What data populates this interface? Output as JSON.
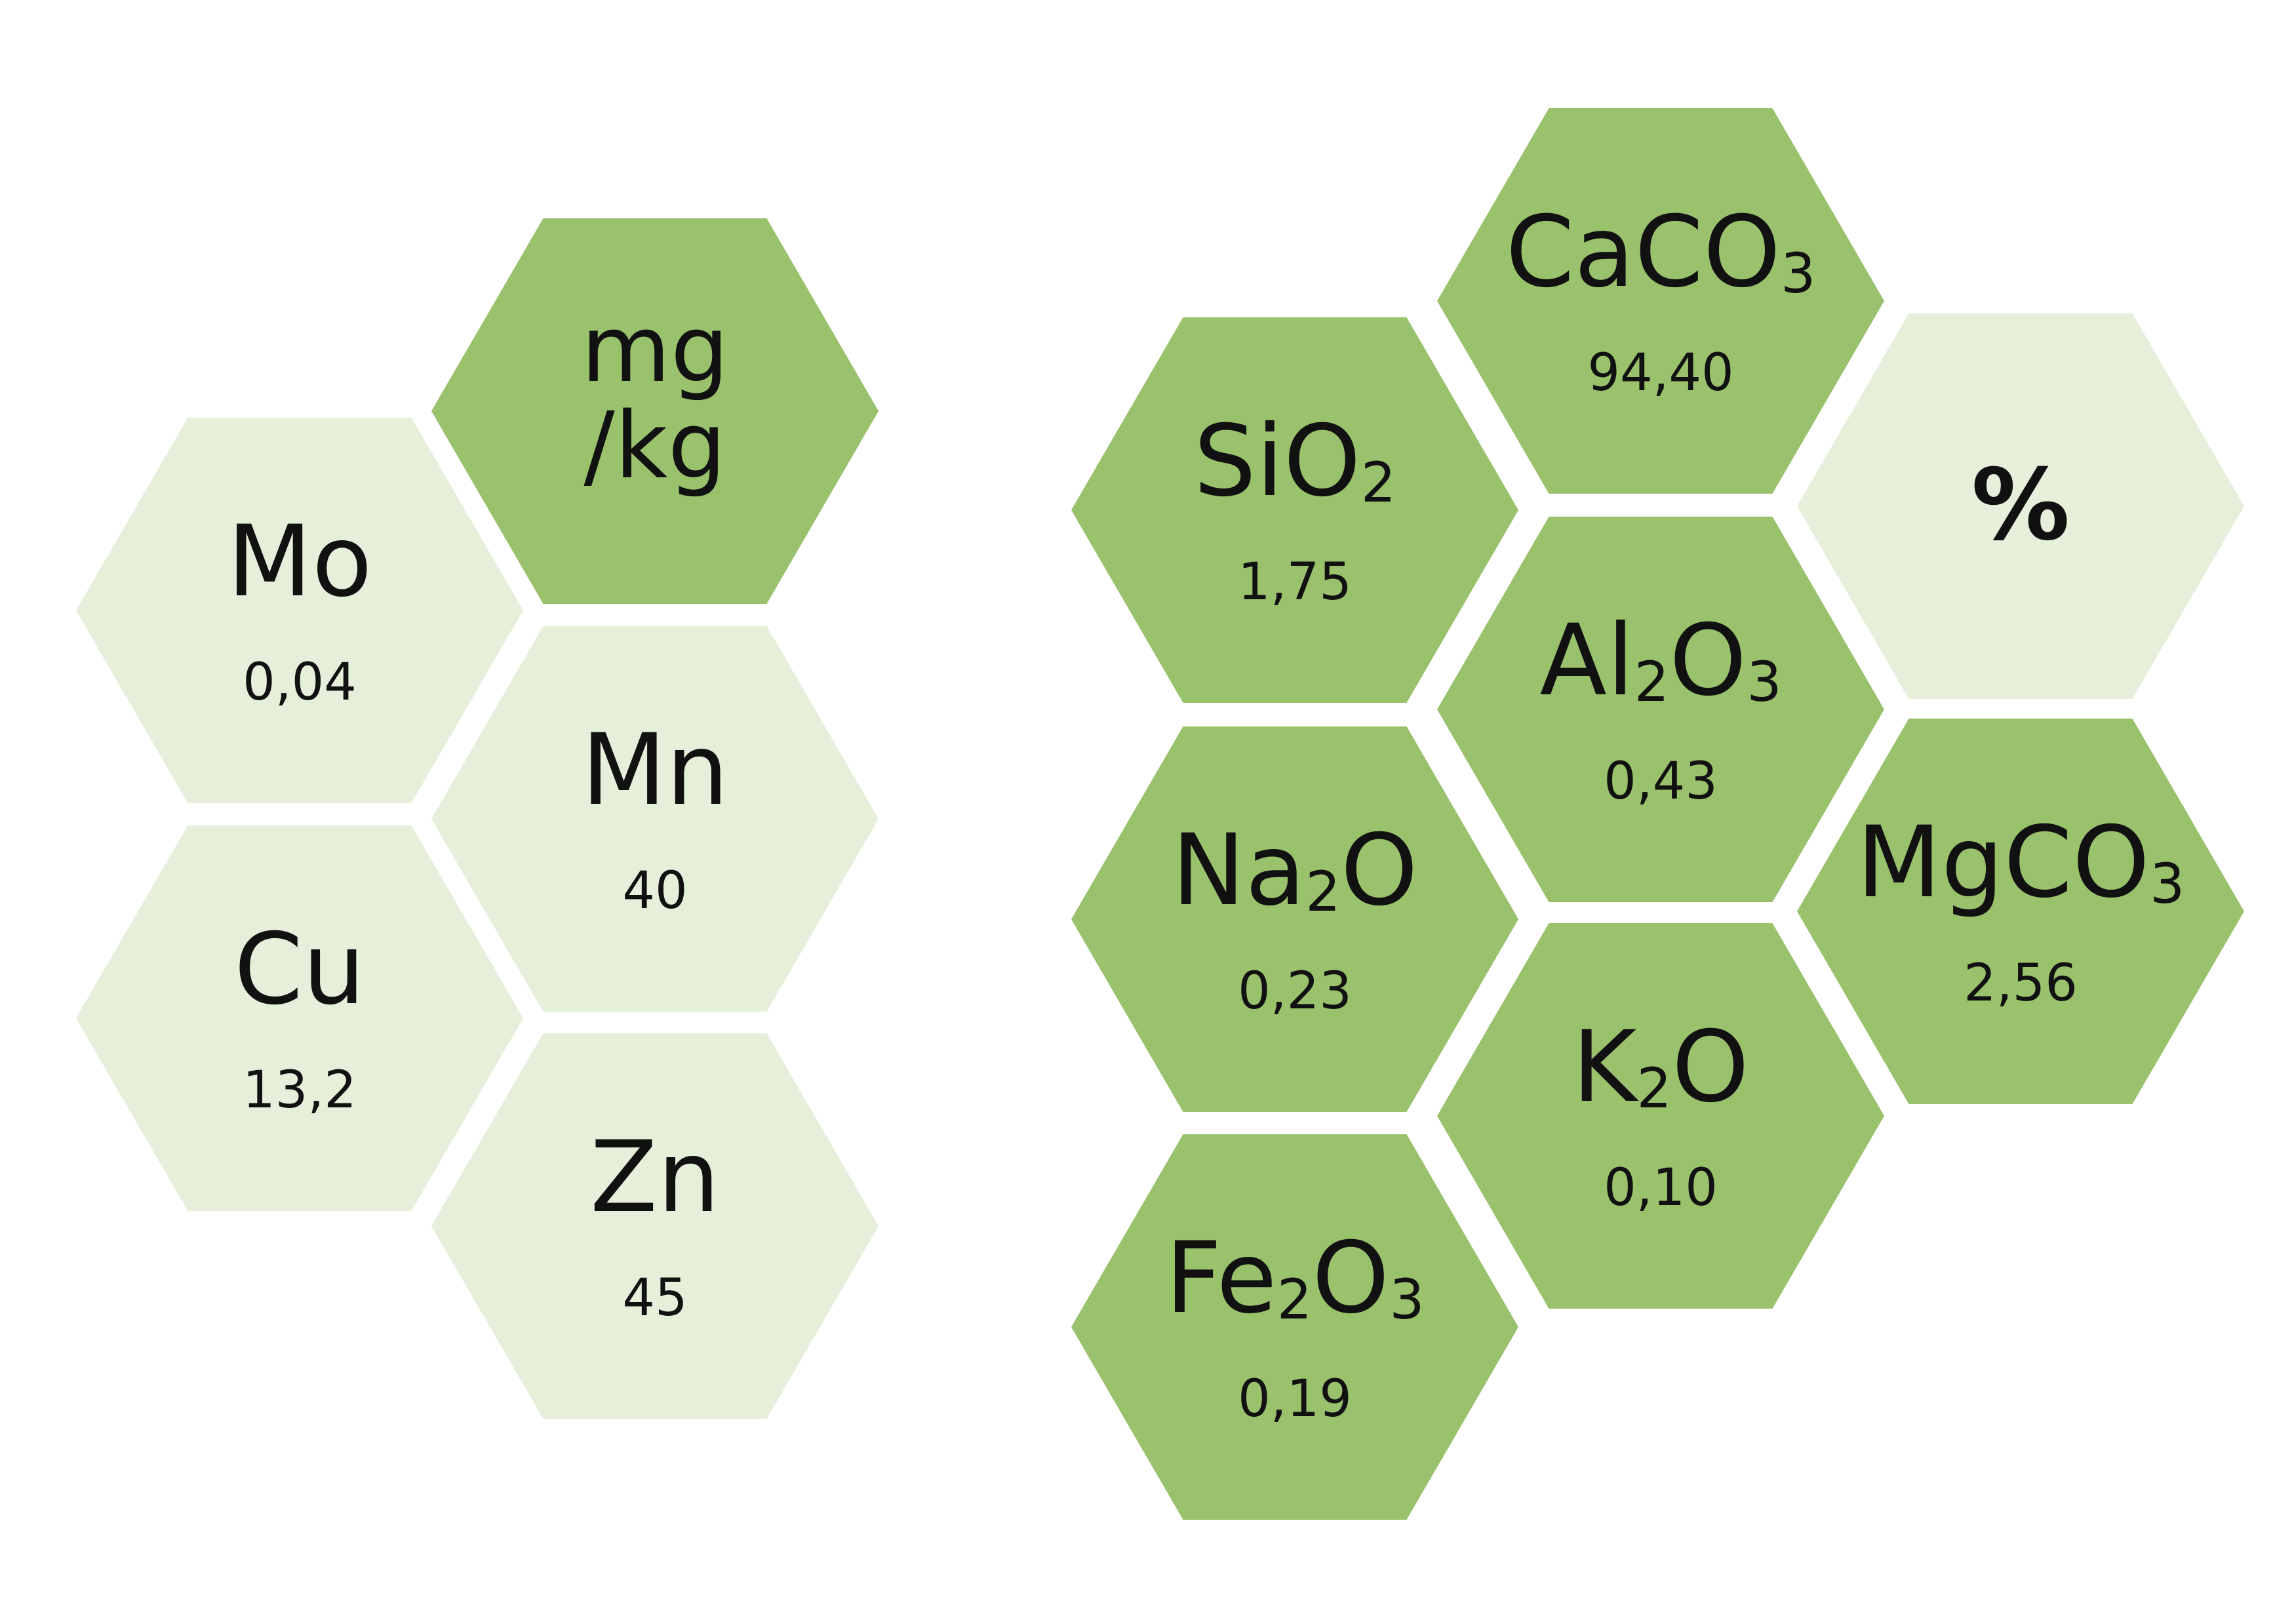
{
  "colors": {
    "dark_green": "#9ac26d",
    "light_green": "#e5efd9",
    "text": "#111111",
    "background": "#ffffff"
  },
  "mgkg_group": {
    "unit": "mg\n/kg",
    "items": [
      {
        "symbol": "Mo",
        "sub": "",
        "value": "0,04"
      },
      {
        "symbol": "Mn",
        "sub": "",
        "value": "40"
      },
      {
        "symbol": "Cu",
        "sub": "",
        "value": "13,2"
      },
      {
        "symbol": "Zn",
        "sub": "",
        "value": "45"
      }
    ]
  },
  "percent_group": {
    "unit": "%",
    "items": [
      {
        "symbol": "CaCO",
        "sub": "3",
        "value": "94,40"
      },
      {
        "symbol": "SiO",
        "sub": "2",
        "value": "1,75"
      },
      {
        "symbol": "Al",
        "sub": "2",
        "symbol2": "O",
        "sub2": "3",
        "value": "0,43"
      },
      {
        "symbol": "Na",
        "sub": "2",
        "symbol2": "O",
        "value": "0,23"
      },
      {
        "symbol": "MgCO",
        "sub": "3",
        "value": "2,56"
      },
      {
        "symbol": "K",
        "sub": "2",
        "symbol2": "O",
        "value": "0,10"
      },
      {
        "symbol": "Fe",
        "sub": "2",
        "symbol2": "O",
        "sub2": "3",
        "value": "0,19"
      }
    ]
  }
}
